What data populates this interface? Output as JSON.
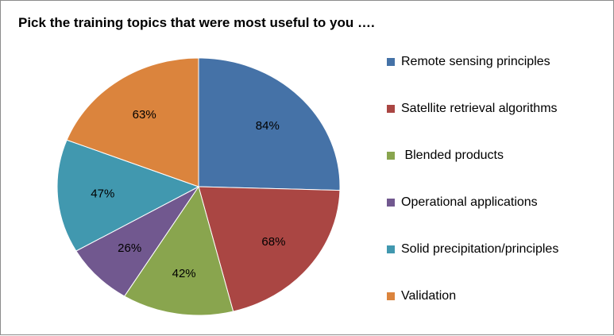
{
  "chart_data": {
    "type": "pie",
    "title": "Pick the training topics that were most useful to you ….",
    "categories": [
      "Remote sensing principles",
      "Satellite retrieval algorithms",
      " Blended products",
      "Operational applications",
      "Solid precipitation/principles",
      "Validation"
    ],
    "values": [
      84,
      68,
      42,
      26,
      47,
      63
    ],
    "data_labels": [
      "84%",
      "68%",
      "42%",
      "26%",
      "47%",
      "63%"
    ],
    "colors": [
      "#4572A7",
      "#AA4643",
      "#89A54E",
      "#71588F",
      "#4198AF",
      "#DB843D"
    ],
    "legend_position": "right"
  }
}
